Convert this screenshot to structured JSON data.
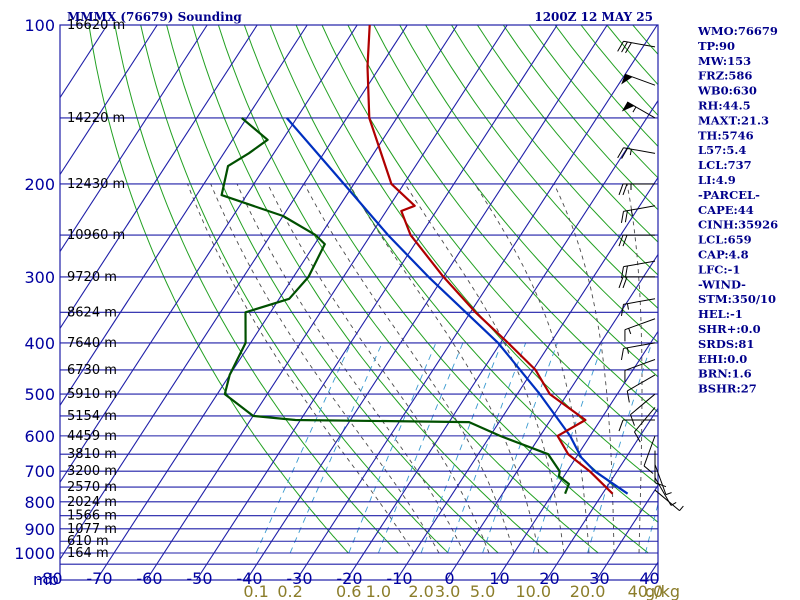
{
  "header": {
    "title_left": "MMMX (76679) Sounding",
    "title_right": "1200Z 12 MAY 25"
  },
  "indices": [
    "WMO:76679",
    "TP:90",
    "MW:153",
    "FRZ:586",
    "WB0:630",
    "RH:44.5",
    "MAXT:21.3",
    "TH:5746",
    "L57:5.4",
    "LCL:737",
    "LI:4.9",
    "-PARCEL-",
    "CAPE:44",
    "CINH:35926",
    "LCL:659",
    "CAP:4.8",
    "LFC:-1",
    "-WIND-",
    "STM:350/10",
    "HEL:-1",
    "SHR+:0.0",
    "SRDS:81",
    "EHI:0.0",
    "BRN:1.6",
    "BSHR:27"
  ],
  "colors": {
    "grid": "#1f1fa8",
    "dry_adiabat": "#22a022",
    "moist_adiabat": "#4a4a4a",
    "mixing_ratio": "#3a9ad0",
    "temperature": "#b00000",
    "dewpoint": "#005000",
    "parcel": "#0030c0",
    "wind": "#000000"
  },
  "chart_data": {
    "type": "skew-t",
    "pressure_levels_mb": [
      100,
      200,
      300,
      400,
      500,
      600,
      700,
      800,
      900,
      1000
    ],
    "pressure_tick_labels": [
      "100",
      "200",
      "300",
      "400",
      "500",
      "600",
      "700",
      "800",
      "900",
      "1000"
    ],
    "pressure_unit_label": "mb",
    "temperature_ticks_c": [
      -80,
      -70,
      -60,
      -50,
      -40,
      -30,
      -20,
      -10,
      0,
      10,
      20,
      30,
      40
    ],
    "temperature_tick_labels": [
      "-80",
      "-70",
      "-60",
      "-50",
      "-40",
      "-30",
      "-20",
      "-10",
      "0",
      "10",
      "20",
      "30",
      "40"
    ],
    "mixing_ratio_ticks": [
      "0.1",
      "0.2",
      "0.6",
      "1.0",
      "2.0",
      "3.0",
      "5.0",
      "10.0",
      "20.0",
      "40.0"
    ],
    "mixing_ratio_unit": "g/kg",
    "heights": [
      {
        "p": 100,
        "label": "16620 m"
      },
      {
        "p": 150,
        "label": "14220 m"
      },
      {
        "p": 200,
        "label": "12430 m"
      },
      {
        "p": 250,
        "label": "10960 m"
      },
      {
        "p": 300,
        "label": "9720 m"
      },
      {
        "p": 350,
        "label": "8624 m"
      },
      {
        "p": 400,
        "label": "7640 m"
      },
      {
        "p": 450,
        "label": "6730 m"
      },
      {
        "p": 500,
        "label": "5910 m"
      },
      {
        "p": 550,
        "label": "5154 m"
      },
      {
        "p": 600,
        "label": "4459 m"
      },
      {
        "p": 650,
        "label": "3810 m"
      },
      {
        "p": 700,
        "label": "3200 m"
      },
      {
        "p": 750,
        "label": "2570 m"
      },
      {
        "p": 800,
        "label": "2024 m"
      },
      {
        "p": 850,
        "label": "1566 m"
      },
      {
        "p": 900,
        "label": "1077 m"
      },
      {
        "p": 950,
        "label": "610 m"
      },
      {
        "p": 1000,
        "label": "164 m"
      }
    ],
    "temperature_c": [
      [
        772,
        22.0
      ],
      [
        700,
        14.5
      ],
      [
        650,
        8.0
      ],
      [
        600,
        3.5
      ],
      [
        560,
        7.0
      ],
      [
        500,
        -3.5
      ],
      [
        450,
        -9.5
      ],
      [
        400,
        -18.5
      ],
      [
        350,
        -29.0
      ],
      [
        300,
        -40.0
      ],
      [
        250,
        -52.0
      ],
      [
        225,
        -57.0
      ],
      [
        220,
        -55.0
      ],
      [
        200,
        -62.5
      ],
      [
        150,
        -75.5
      ],
      [
        120,
        -82.5
      ],
      [
        100,
        -87.5
      ]
    ],
    "dewpoint_c": [
      [
        772,
        12.5
      ],
      [
        740,
        12.0
      ],
      [
        715,
        9.0
      ],
      [
        700,
        8.5
      ],
      [
        650,
        4.0
      ],
      [
        600,
        -8.0
      ],
      [
        565,
        -16.0
      ],
      [
        560,
        -51.0
      ],
      [
        550,
        -60.0
      ],
      [
        500,
        -68.5
      ],
      [
        460,
        -70.0
      ],
      [
        400,
        -71.0
      ],
      [
        350,
        -75.0
      ],
      [
        330,
        -68.0
      ],
      [
        300,
        -67.0
      ],
      [
        260,
        -68.0
      ],
      [
        250,
        -71.0
      ],
      [
        230,
        -80.0
      ],
      [
        210,
        -95.0
      ],
      [
        185,
        -97.5
      ],
      [
        175,
        -95.0
      ],
      [
        165,
        -93.0
      ],
      [
        150,
        -101.0
      ]
    ],
    "parcel_c": [
      [
        772,
        25.0
      ],
      [
        700,
        15.5
      ],
      [
        659,
        11.0
      ],
      [
        600,
        6.0
      ],
      [
        500,
        -5.5
      ],
      [
        400,
        -20.5
      ],
      [
        300,
        -43.0
      ],
      [
        250,
        -56.5
      ],
      [
        200,
        -72.0
      ],
      [
        150,
        -92.0
      ]
    ],
    "wind_barbs": [
      {
        "p": 110,
        "dir": 280,
        "spd": 30
      },
      {
        "p": 130,
        "dir": 290,
        "spd": 50
      },
      {
        "p": 150,
        "dir": 300,
        "spd": 55
      },
      {
        "p": 175,
        "dir": 280,
        "spd": 25
      },
      {
        "p": 200,
        "dir": 270,
        "spd": 25
      },
      {
        "p": 220,
        "dir": 260,
        "spd": 25
      },
      {
        "p": 250,
        "dir": 270,
        "spd": 20
      },
      {
        "p": 280,
        "dir": 260,
        "spd": 20
      },
      {
        "p": 300,
        "dir": 270,
        "spd": 20
      },
      {
        "p": 330,
        "dir": 260,
        "spd": 15
      },
      {
        "p": 360,
        "dir": 250,
        "spd": 15
      },
      {
        "p": 400,
        "dir": 260,
        "spd": 15
      },
      {
        "p": 430,
        "dir": 250,
        "spd": 10
      },
      {
        "p": 460,
        "dir": 240,
        "spd": 10
      },
      {
        "p": 500,
        "dir": 230,
        "spd": 10
      },
      {
        "p": 530,
        "dir": 220,
        "spd": 10
      },
      {
        "p": 560,
        "dir": 270,
        "spd": 10
      },
      {
        "p": 600,
        "dir": 200,
        "spd": 10
      },
      {
        "p": 640,
        "dir": 180,
        "spd": 10
      },
      {
        "p": 680,
        "dir": 160,
        "spd": 5
      },
      {
        "p": 720,
        "dir": 150,
        "spd": 5
      },
      {
        "p": 760,
        "dir": 130,
        "spd": 5
      }
    ]
  }
}
